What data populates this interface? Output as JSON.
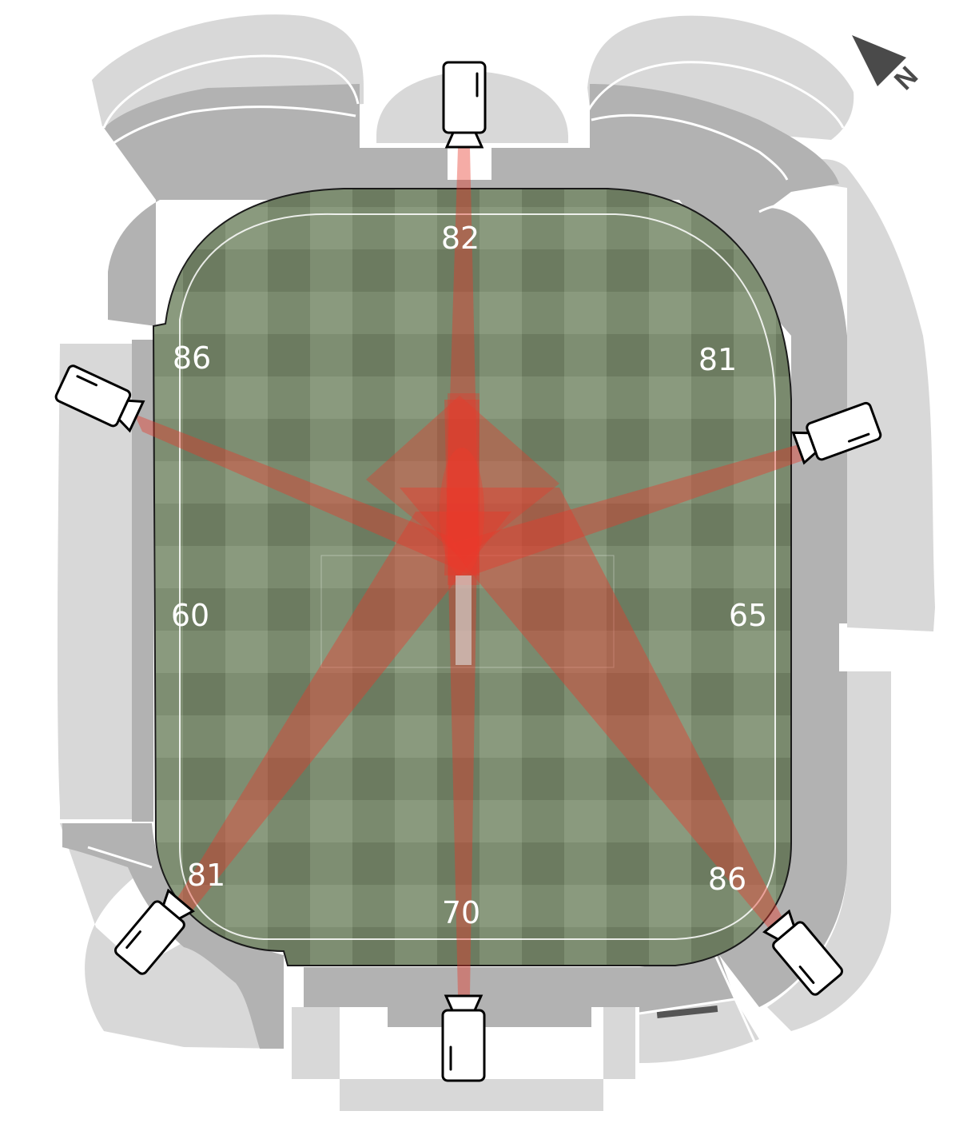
{
  "map": {
    "compass": {
      "label": "N",
      "icon": "north-arrow-icon"
    },
    "colors": {
      "stands_dark": "#b0b0b0",
      "stands_light": "#d8d8d8",
      "field_light": "#8a9a7e",
      "field_dark": "#6e7d62",
      "beam": "#e8392b",
      "camera_body": "#ffffff"
    },
    "distances": [
      {
        "id": "north",
        "value": "82"
      },
      {
        "id": "north-west",
        "value": "86"
      },
      {
        "id": "north-east",
        "value": "81"
      },
      {
        "id": "west",
        "value": "60"
      },
      {
        "id": "east",
        "value": "65"
      },
      {
        "id": "south-west",
        "value": "81"
      },
      {
        "id": "south-east",
        "value": "86"
      },
      {
        "id": "south",
        "value": "70"
      }
    ],
    "cameras": [
      {
        "name": "camera-north",
        "icon": "video-camera-icon"
      },
      {
        "name": "camera-west",
        "icon": "video-camera-icon"
      },
      {
        "name": "camera-east",
        "icon": "video-camera-icon"
      },
      {
        "name": "camera-south-west",
        "icon": "video-camera-icon"
      },
      {
        "name": "camera-south-east",
        "icon": "video-camera-icon"
      },
      {
        "name": "camera-south",
        "icon": "video-camera-icon"
      }
    ]
  }
}
